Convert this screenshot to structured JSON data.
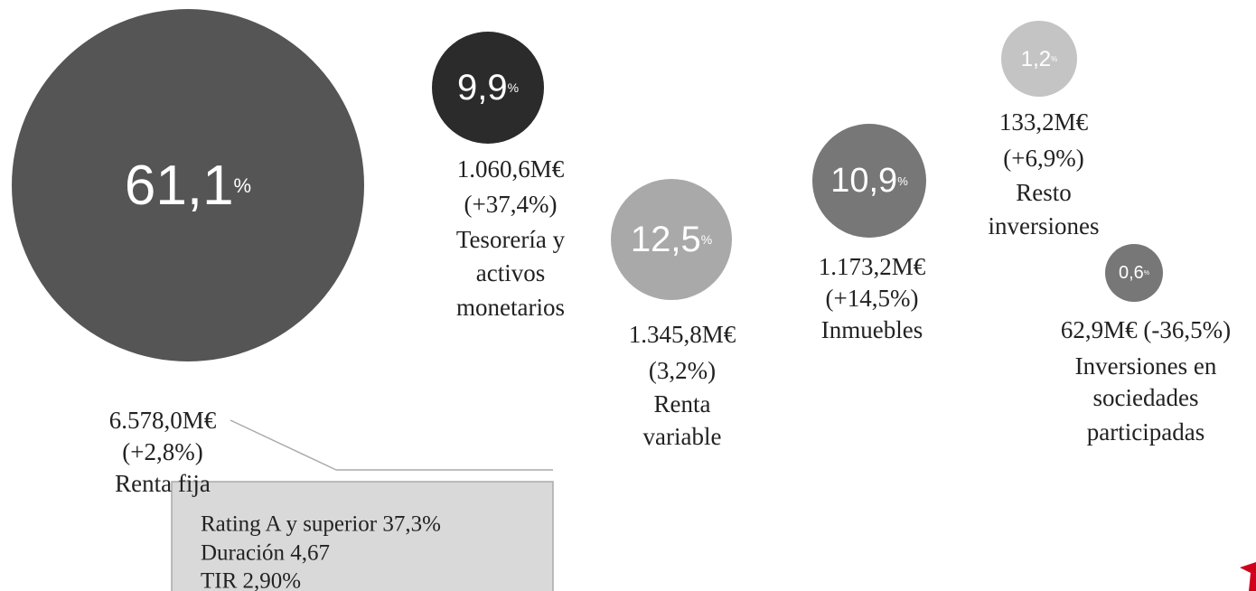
{
  "nodes": [
    {
      "percent": "61,1",
      "unit": "%",
      "lines": [
        "6.578,0M€",
        "(+2,8%)",
        "Renta fija"
      ]
    },
    {
      "percent": "9,9",
      "unit": "%",
      "lines": [
        "1.060,6M€",
        "(+37,4%)",
        "Tesorería y",
        "activos",
        "monetarios"
      ]
    },
    {
      "percent": "12,5",
      "unit": "%",
      "lines": [
        "1.345,8M€",
        "(3,2%)",
        "Renta",
        "variable"
      ]
    },
    {
      "percent": "10,9",
      "unit": "%",
      "lines": [
        "1.173,2M€",
        "(+14,5%)",
        "Inmuebles"
      ]
    },
    {
      "percent": "1,2",
      "unit": "%",
      "lines": [
        "133,2M€",
        "(+6,9%)",
        "Resto",
        "inversiones"
      ]
    },
    {
      "percent": "0,6",
      "unit": "%",
      "lines": [
        "62,9M€ (-36,5%)",
        "Inversiones en",
        "sociedades",
        "participadas"
      ]
    }
  ],
  "detail_box": {
    "lines": [
      "Rating A y superior 37,3%",
      "Duración 4,67",
      "TIR 2,90%"
    ]
  }
}
